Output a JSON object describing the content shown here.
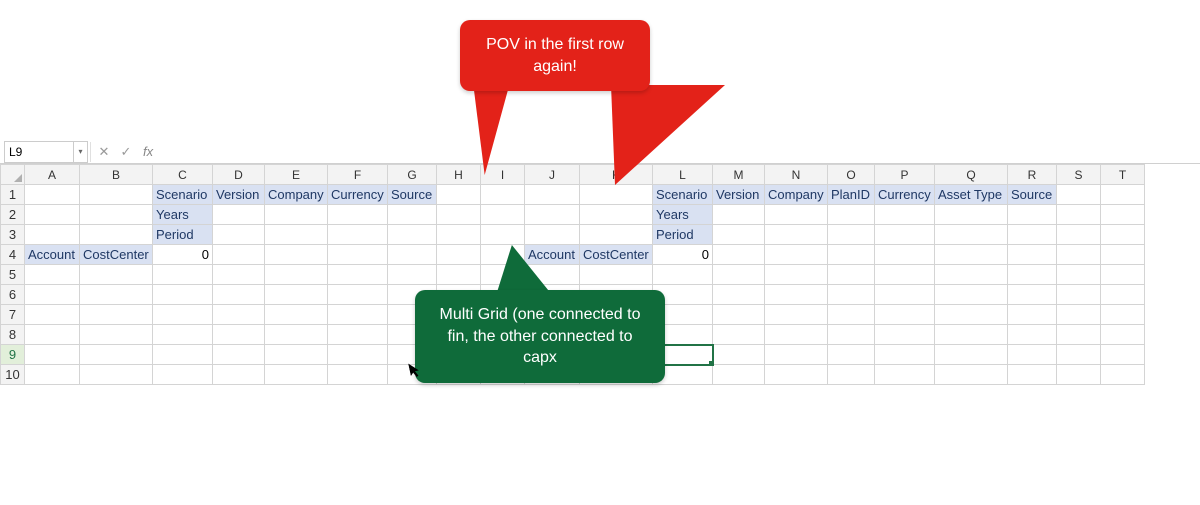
{
  "formulaBar": {
    "nameBox": "L9",
    "fxLabel": "fx",
    "formula": ""
  },
  "colWidths": {
    "rowHead": 24,
    "A": 55,
    "B": 73,
    "C": 60,
    "D": 52,
    "E": 63,
    "F": 60,
    "G": 49,
    "H": 44,
    "I": 44,
    "J": 55,
    "K": 73,
    "L": 60,
    "M": 52,
    "N": 63,
    "O": 47,
    "P": 60,
    "Q": 73,
    "R": 49,
    "S": 44,
    "T": 44
  },
  "columns": [
    "A",
    "B",
    "C",
    "D",
    "E",
    "F",
    "G",
    "H",
    "I",
    "J",
    "K",
    "L",
    "M",
    "N",
    "O",
    "P",
    "Q",
    "R",
    "S",
    "T"
  ],
  "rows": [
    "1",
    "2",
    "3",
    "4",
    "5",
    "6",
    "7",
    "8",
    "9",
    "10"
  ],
  "activeRow": "9",
  "selectedCell": {
    "row": 9,
    "col": "L"
  },
  "grid1": {
    "header": [
      "Scenario",
      "Version",
      "Company",
      "Currency",
      "Source"
    ],
    "row2": "Years",
    "row3": "Period",
    "row4_labels": [
      "Account",
      "CostCenter"
    ],
    "row4_value": "0"
  },
  "grid2": {
    "header": [
      "Scenario",
      "Version",
      "Company",
      "PlanID",
      "Currency",
      "Asset Type",
      "Source"
    ],
    "row2": "Years",
    "row3": "Period",
    "row4_labels": [
      "Account",
      "CostCenter"
    ],
    "row4_value": "0"
  },
  "callouts": {
    "red": {
      "text": "POV in the first row again!",
      "bg": "#e32219",
      "color": "#ffffff"
    },
    "green": {
      "text": "Multi Grid (one connected to fin, the other connected to capx",
      "bg": "#0f6b3a",
      "color": "#ffffff"
    }
  },
  "colors": {
    "headerFill": "#d9e1f2",
    "headerText": "#1f3864",
    "gridline": "#d4d4d4",
    "selection": "#217346"
  }
}
